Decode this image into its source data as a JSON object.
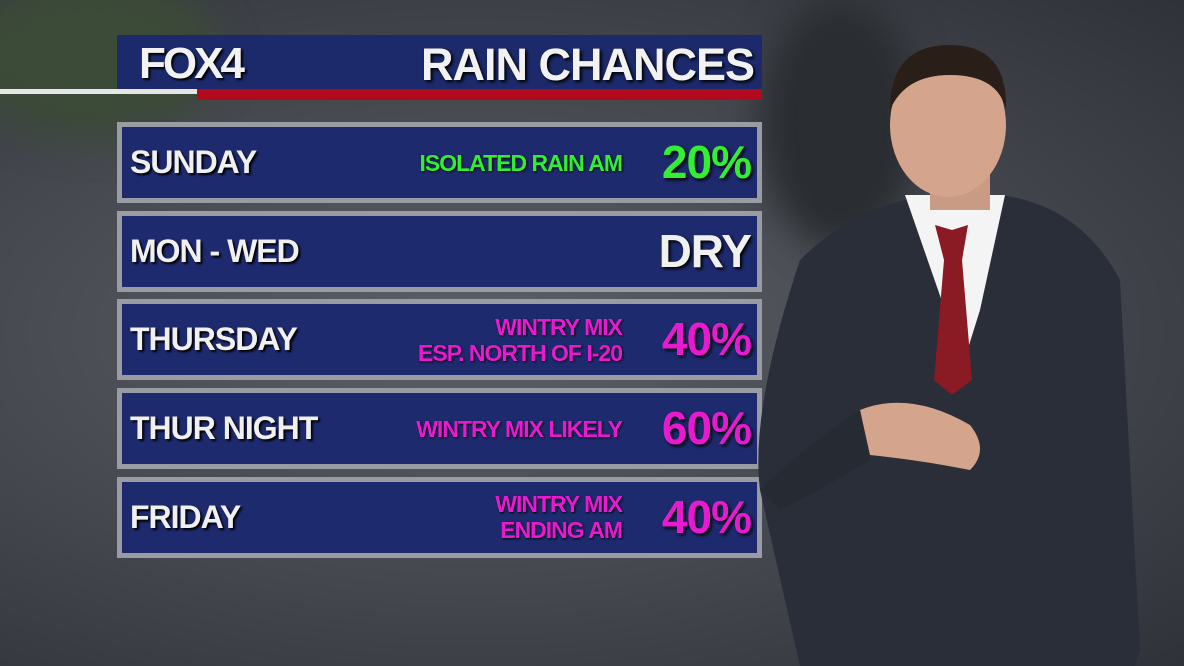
{
  "header": {
    "logo": "FOX 4",
    "title": "RAIN CHANCES"
  },
  "colors": {
    "panel": "#1e2a6e",
    "accent_red": "#b3091f",
    "green": "#33ee33",
    "magenta": "#e81ad0",
    "white": "#f0f0f0"
  },
  "rows": [
    {
      "day": "SUNDAY",
      "desc": [
        "ISOLATED RAIN AM"
      ],
      "chance": "20%",
      "color": "#33ee33"
    },
    {
      "day": "MON - WED",
      "desc": [],
      "chance": "DRY",
      "color": "#f0f0f0"
    },
    {
      "day": "THURSDAY",
      "desc": [
        "WINTRY MIX",
        "ESP. NORTH OF I-20"
      ],
      "chance": "40%",
      "color": "#e81ad0"
    },
    {
      "day": "THUR NIGHT",
      "desc": [
        "WINTRY MIX LIKELY"
      ],
      "chance": "60%",
      "color": "#e81ad0"
    },
    {
      "day": "FRIDAY",
      "desc": [
        "WINTRY MIX",
        "ENDING AM"
      ],
      "chance": "40%",
      "color": "#e81ad0"
    }
  ]
}
